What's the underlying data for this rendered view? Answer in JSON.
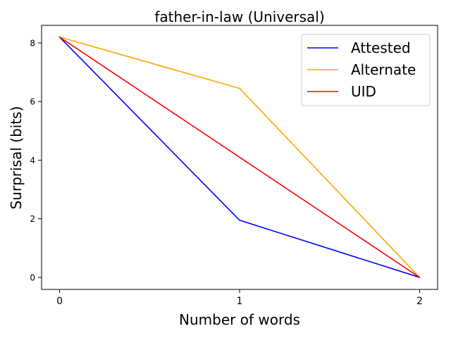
{
  "chart_data": {
    "type": "line",
    "title": "father-in-law (Universal)",
    "xlabel": "Number of words",
    "ylabel": "Surprisal (bits)",
    "x": [
      0,
      1,
      2
    ],
    "x_ticks": [
      "0",
      "1",
      "2"
    ],
    "y_ticks": [
      "0",
      "2",
      "4",
      "6",
      "8"
    ],
    "xlim": [
      -0.1,
      2.1
    ],
    "ylim": [
      -0.41,
      8.6
    ],
    "grid": false,
    "legend_position": "top-right",
    "series": [
      {
        "name": "Attested",
        "color": "#0000ff",
        "values": [
          8.2,
          1.95,
          0.0
        ]
      },
      {
        "name": "Alternate",
        "color": "#ffa500",
        "values": [
          8.2,
          6.45,
          0.0
        ]
      },
      {
        "name": "UID",
        "color": "#ff0000",
        "values": [
          8.2,
          4.1,
          0.0
        ]
      }
    ]
  }
}
